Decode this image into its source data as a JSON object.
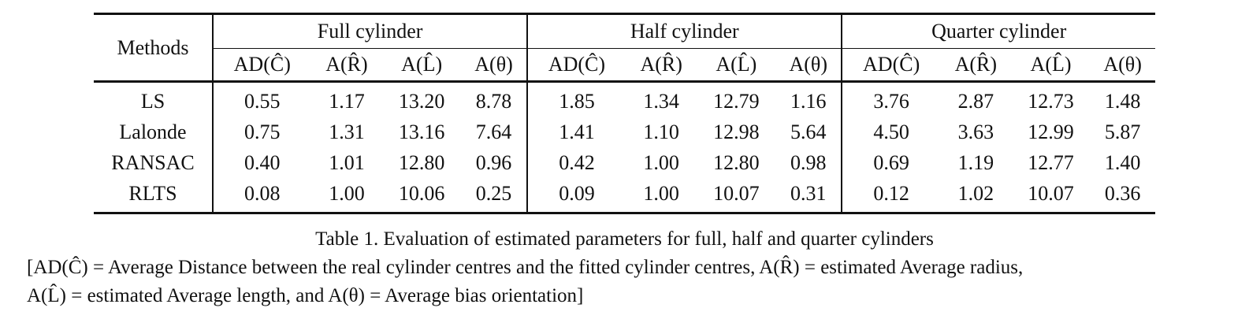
{
  "table": {
    "method_header": "Methods",
    "groups": [
      "Full cylinder",
      "Half cylinder",
      "Quarter cylinder"
    ],
    "sub_headers": [
      "AD(Ĉ)",
      "A(R̂)",
      "A(L̂)",
      "A(θ)"
    ],
    "rows": [
      {
        "method": "LS",
        "values": [
          "0.55",
          "1.17",
          "13.20",
          "8.78",
          "1.85",
          "1.34",
          "12.79",
          "1.16",
          "3.76",
          "2.87",
          "12.73",
          "1.48"
        ]
      },
      {
        "method": "Lalonde",
        "values": [
          "0.75",
          "1.31",
          "13.16",
          "7.64",
          "1.41",
          "1.10",
          "12.98",
          "5.64",
          "4.50",
          "3.63",
          "12.99",
          "5.87"
        ]
      },
      {
        "method": "RANSAC",
        "values": [
          "0.40",
          "1.01",
          "12.80",
          "0.96",
          "0.42",
          "1.00",
          "12.80",
          "0.98",
          "0.69",
          "1.19",
          "12.77",
          "1.40"
        ]
      },
      {
        "method": "RLTS",
        "values": [
          "0.08",
          "1.00",
          "10.06",
          "0.25",
          "0.09",
          "1.00",
          "10.07",
          "0.31",
          "0.12",
          "1.02",
          "10.07",
          "0.36"
        ]
      }
    ]
  },
  "caption": {
    "title": "Table 1. Evaluation of estimated parameters for full, half and quarter cylinders",
    "note_line1": "[AD(Ĉ) = Average Distance between the real cylinder centres and the fitted cylinder centres, A(R̂) = estimated Average radius,",
    "note_line2": "A(L̂) = estimated Average length, and A(θ) = Average bias orientation]"
  }
}
